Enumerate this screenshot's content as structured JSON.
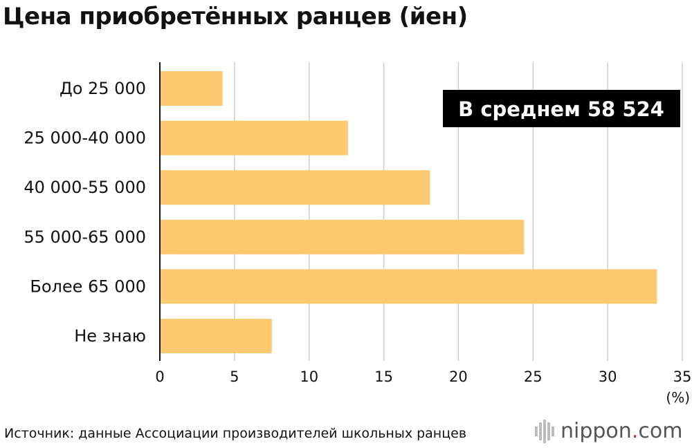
{
  "title": "Цена приобретённых ранцев (йен)",
  "chart_data": {
    "type": "bar",
    "orientation": "horizontal",
    "title": "Цена приобретённых ранцев (йен)",
    "categories": [
      "До 25 000",
      "25 000-40 000",
      "40 000-55 000",
      "55 000-65 000",
      "Более 65 000",
      "Не знаю"
    ],
    "values": [
      4.2,
      12.6,
      18.1,
      24.4,
      33.3,
      7.5
    ],
    "xlim": [
      0,
      35
    ],
    "xticks": [
      "0",
      "5",
      "10",
      "15",
      "20",
      "25",
      "30",
      "35"
    ],
    "xunit": "(%)",
    "grid": true,
    "annotation": "В среднем 58 524",
    "bar_color": "#fbca70"
  },
  "source": "Источник: данные Ассоциации производителей школьных ранцев",
  "brand": {
    "name": "nippon",
    "dot": ".",
    "tld": "com"
  }
}
